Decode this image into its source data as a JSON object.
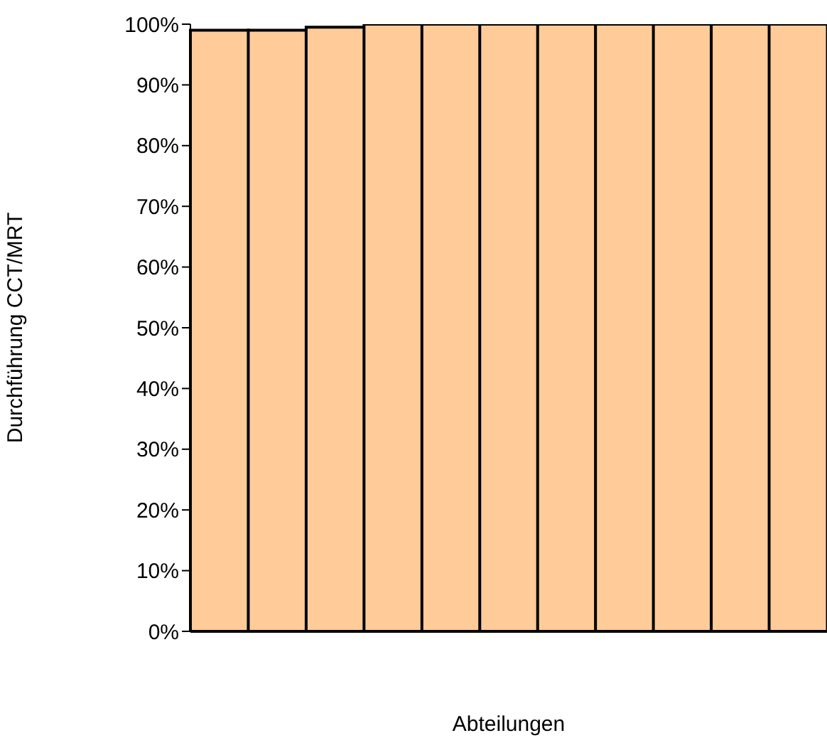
{
  "chart_data": {
    "type": "bar",
    "xlabel": "Abteilungen",
    "ylabel": "Durchführung CCT/MRT",
    "categories": [
      null,
      null,
      null,
      null,
      null,
      null,
      null,
      null,
      null,
      null,
      null
    ],
    "values": [
      99,
      99,
      99.5,
      100,
      100,
      100,
      100,
      100,
      100,
      100,
      100
    ],
    "color": "#ffcc99",
    "ylim": [
      0,
      100
    ],
    "yticks": [
      {
        "value": 0,
        "label": "0%"
      },
      {
        "value": 10,
        "label": "10%"
      },
      {
        "value": 20,
        "label": "20%"
      },
      {
        "value": 30,
        "label": "30%"
      },
      {
        "value": 40,
        "label": "40%"
      },
      {
        "value": 50,
        "label": "50%"
      },
      {
        "value": 60,
        "label": "60%"
      },
      {
        "value": 70,
        "label": "70%"
      },
      {
        "value": 80,
        "label": "80%"
      },
      {
        "value": 90,
        "label": "90%"
      },
      {
        "value": 100,
        "label": "100%"
      }
    ],
    "grid": false,
    "legend": false
  }
}
